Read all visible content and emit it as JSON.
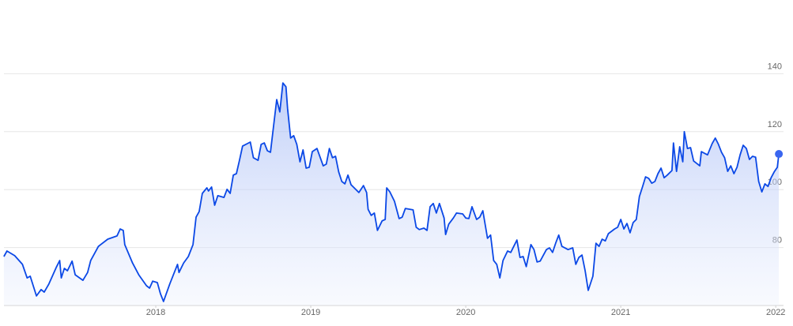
{
  "chart_data": {
    "type": "line",
    "color": "#0b48e6",
    "grid": true,
    "xlim": [
      2017,
      2022.05
    ],
    "xticks": [
      2018,
      2019,
      2020,
      2021,
      2022
    ],
    "ylim": [
      60,
      160
    ],
    "yticks": [
      80,
      100,
      120,
      140
    ],
    "x": [
      2017.02,
      2017.04,
      2017.09,
      2017.14,
      2017.17,
      2017.19,
      2017.23,
      2017.26,
      2017.28,
      2017.31,
      2017.36,
      2017.38,
      2017.39,
      2017.41,
      2017.43,
      2017.46,
      2017.48,
      2017.53,
      2017.56,
      2017.58,
      2017.63,
      2017.69,
      2017.75,
      2017.77,
      2017.79,
      2017.8,
      2017.85,
      2017.89,
      2017.94,
      2017.96,
      2017.98,
      2018.01,
      2018.03,
      2018.05,
      2018.09,
      2018.14,
      2018.15,
      2018.18,
      2018.21,
      2018.24,
      2018.26,
      2018.28,
      2018.3,
      2018.33,
      2018.34,
      2018.36,
      2018.38,
      2018.4,
      2018.44,
      2018.46,
      2018.48,
      2018.5,
      2018.52,
      2018.54,
      2018.56,
      2018.61,
      2018.63,
      2018.66,
      2018.68,
      2018.7,
      2018.72,
      2018.74,
      2018.76,
      2018.78,
      2018.8,
      2018.82,
      2018.84,
      2018.85,
      2018.87,
      2018.89,
      2018.91,
      2018.93,
      2018.95,
      2018.97,
      2018.99,
      2019.01,
      2019.04,
      2019.08,
      2019.1,
      2019.12,
      2019.14,
      2019.16,
      2019.18,
      2019.2,
      2019.22,
      2019.24,
      2019.26,
      2019.31,
      2019.34,
      2019.36,
      2019.37,
      2019.39,
      2019.41,
      2019.43,
      2019.46,
      2019.48,
      2019.49,
      2019.51,
      2019.54,
      2019.57,
      2019.59,
      2019.61,
      2019.66,
      2019.68,
      2019.7,
      2019.73,
      2019.75,
      2019.77,
      2019.79,
      2019.81,
      2019.83,
      2019.86,
      2019.87,
      2019.89,
      2019.92,
      2019.94,
      2019.98,
      2020.0,
      2020.02,
      2020.04,
      2020.07,
      2020.09,
      2020.11,
      2020.14,
      2020.16,
      2020.18,
      2020.2,
      2020.22,
      2020.24,
      2020.27,
      2020.29,
      2020.33,
      2020.35,
      2020.37,
      2020.39,
      2020.42,
      2020.44,
      2020.46,
      2020.48,
      2020.52,
      2020.54,
      2020.56,
      2020.58,
      2020.6,
      2020.62,
      2020.66,
      2020.69,
      2020.71,
      2020.73,
      2020.75,
      2020.77,
      2020.79,
      2020.82,
      2020.84,
      2020.86,
      2020.88,
      2020.9,
      2020.92,
      2020.96,
      2020.98,
      2021.0,
      2021.02,
      2021.04,
      2021.06,
      2021.08,
      2021.1,
      2021.12,
      2021.14,
      2021.16,
      2021.18,
      2021.2,
      2021.22,
      2021.24,
      2021.26,
      2021.28,
      2021.3,
      2021.33,
      2021.34,
      2021.36,
      2021.38,
      2021.4,
      2021.41,
      2021.43,
      2021.45,
      2021.47,
      2021.51,
      2021.52,
      2021.56,
      2021.59,
      2021.61,
      2021.63,
      2021.65,
      2021.67,
      2021.69,
      2021.71,
      2021.73,
      2021.75,
      2021.77,
      2021.79,
      2021.81,
      2021.83,
      2021.85,
      2021.87,
      2021.89,
      2021.91,
      2021.93,
      2021.95,
      2021.97,
      2021.99,
      2022.01,
      2022.02
    ],
    "values": [
      76.9,
      78.8,
      77.2,
      74.2,
      69.5,
      70.1,
      63.3,
      65.5,
      64.6,
      67.4,
      73.4,
      75.5,
      69.5,
      72.8,
      72.0,
      75.3,
      70.6,
      68.7,
      71.4,
      75.5,
      80.4,
      82.9,
      84.0,
      86.4,
      85.9,
      81.0,
      74.7,
      70.6,
      66.8,
      66.0,
      68.4,
      67.9,
      64.1,
      61.4,
      67.4,
      74.2,
      71.4,
      74.7,
      76.9,
      81.0,
      90.5,
      92.4,
      98.7,
      100.6,
      99.5,
      100.9,
      94.6,
      97.9,
      97.3,
      100.1,
      98.7,
      105.0,
      105.5,
      110.1,
      115.0,
      116.4,
      111.0,
      110.1,
      115.6,
      116.1,
      113.4,
      112.9,
      121.9,
      131.1,
      126.8,
      136.8,
      135.5,
      128.1,
      117.8,
      118.6,
      115.6,
      109.6,
      113.7,
      107.4,
      107.7,
      113.1,
      114.2,
      108.2,
      108.8,
      114.2,
      111.0,
      111.5,
      106.1,
      102.8,
      102.0,
      105.0,
      101.7,
      99.0,
      101.4,
      99.0,
      93.2,
      91.1,
      91.9,
      85.9,
      89.2,
      89.7,
      100.6,
      99.2,
      96.0,
      90.0,
      90.5,
      93.5,
      93.0,
      87.0,
      86.2,
      86.7,
      85.9,
      94.1,
      95.2,
      91.9,
      95.2,
      90.2,
      84.5,
      88.1,
      90.2,
      91.9,
      91.6,
      90.2,
      90.0,
      94.1,
      89.7,
      90.5,
      92.7,
      83.2,
      84.3,
      75.5,
      74.2,
      69.5,
      75.5,
      78.8,
      78.3,
      82.6,
      76.6,
      76.9,
      73.4,
      81.0,
      79.3,
      75.0,
      75.3,
      79.3,
      79.9,
      78.3,
      81.5,
      84.3,
      80.4,
      79.3,
      79.9,
      74.2,
      76.6,
      77.4,
      72.0,
      65.2,
      70.1,
      81.5,
      80.4,
      82.9,
      82.3,
      84.8,
      86.4,
      87.0,
      89.7,
      86.4,
      88.3,
      85.1,
      88.6,
      89.7,
      97.6,
      100.9,
      104.4,
      103.9,
      102.2,
      102.8,
      105.5,
      107.4,
      104.1,
      105.0,
      106.6,
      116.1,
      106.3,
      114.8,
      109.6,
      120.0,
      114.2,
      114.5,
      109.9,
      108.2,
      113.1,
      112.0,
      115.9,
      117.8,
      115.6,
      112.9,
      111.0,
      106.3,
      108.2,
      105.5,
      107.7,
      112.0,
      115.3,
      114.2,
      110.4,
      111.5,
      111.2,
      102.8,
      99.2,
      102.0,
      101.1,
      104.1,
      106.1,
      107.7,
      112.3
    ]
  }
}
